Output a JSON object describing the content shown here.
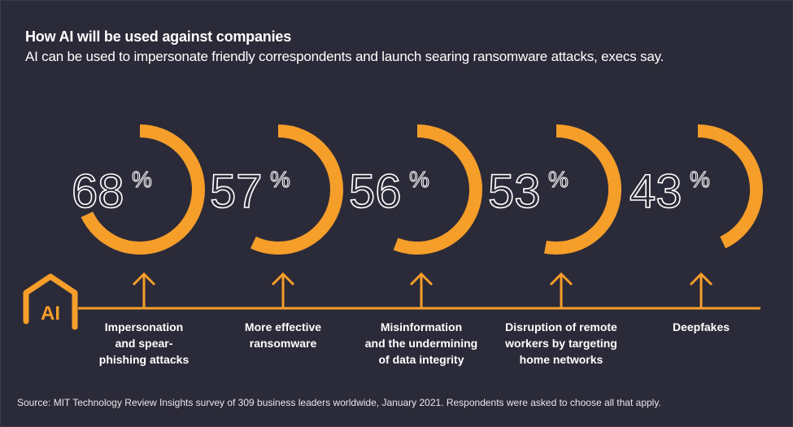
{
  "header": {
    "title": "How AI will be used against companies",
    "subtitle": "AI can be used to impersonate friendly correspondents and launch searing ransomware attacks, execs say."
  },
  "logo": {
    "text": "AI",
    "icon": "house-ai-icon"
  },
  "colors": {
    "background": "#2b2a38",
    "accent": "#f59e2a",
    "text": "#ffffff"
  },
  "footer": {
    "source": "Source: MIT Technology Review Insights survey of 309 business leaders worldwide, January 2021. Respondents were asked to choose all that apply."
  },
  "chart_data": {
    "type": "pie",
    "subtype": "radial-progress-rings",
    "title": "How AI will be used against companies",
    "subtitle": "AI can be used to impersonate friendly correspondents and launch searing ransomware attacks, execs say.",
    "unit": "%",
    "categories": [
      "Impersonation and spear-phishing attacks",
      "More effective ransomware",
      "Misinformation and the undermining of data integrity",
      "Disruption of remote workers by targeting home networks",
      "Deepfakes"
    ],
    "label_lines": [
      [
        "Impersonation",
        "and spear-",
        "phishing attacks"
      ],
      [
        "More effective",
        "ransomware"
      ],
      [
        "Misinformation",
        "and the undermining",
        "of data integrity"
      ],
      [
        "Disruption of remote",
        "workers by targeting",
        "home networks"
      ],
      [
        "Deepfakes"
      ]
    ],
    "values": [
      68,
      57,
      56,
      53,
      43
    ],
    "value_labels": [
      "68",
      "57",
      "56",
      "53",
      "43"
    ],
    "range": [
      0,
      100
    ],
    "legend": "none"
  }
}
